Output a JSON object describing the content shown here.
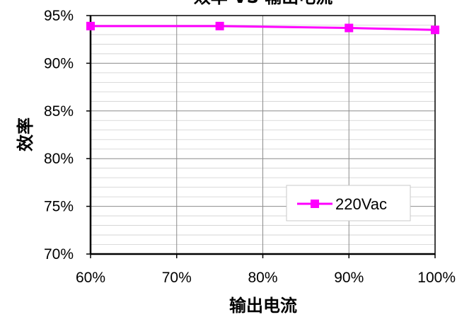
{
  "chart_data": {
    "type": "line",
    "title": "效率 VS 输出电流",
    "xlabel": "输出电流",
    "ylabel": "效率",
    "x_tick_labels": [
      "60%",
      "70%",
      "80%",
      "90%",
      "100%"
    ],
    "y_tick_labels": [
      "70%",
      "75%",
      "80%",
      "85%",
      "90%",
      "95%"
    ],
    "xlim": [
      60,
      100
    ],
    "ylim": [
      70,
      95
    ],
    "grid": true,
    "legend_position": "right",
    "series": [
      {
        "name": "220Vac",
        "color": "#FF00FF",
        "marker": "square",
        "x": [
          60,
          75,
          90,
          100
        ],
        "y": [
          93.9,
          93.9,
          93.7,
          93.5
        ]
      }
    ]
  }
}
